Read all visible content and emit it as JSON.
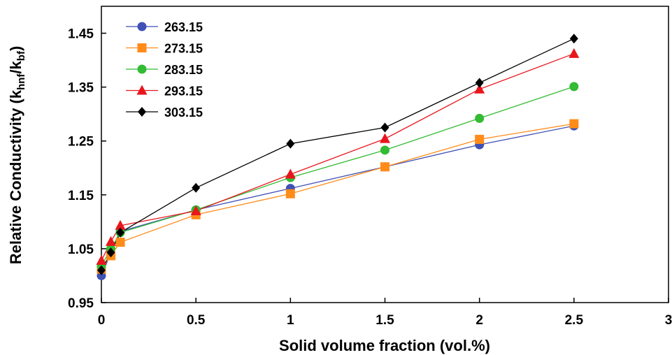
{
  "chart_data": {
    "type": "line",
    "xlabel": "Solid volume fraction (vol.%)",
    "ylabel": {
      "prefix": "Relative Conductivity (k",
      "sub1": "hnf",
      "mid": "/k",
      "sub2": "bf",
      "suffix": ")"
    },
    "xlim": [
      0,
      3
    ],
    "ylim": [
      0.95,
      1.5
    ],
    "xticks": [
      {
        "v": 0,
        "label": "0"
      },
      {
        "v": 0.5,
        "label": "0.5"
      },
      {
        "v": 1,
        "label": "1"
      },
      {
        "v": 1.5,
        "label": "1.5"
      },
      {
        "v": 2,
        "label": "2"
      },
      {
        "v": 2.5,
        "label": "2.5"
      },
      {
        "v": 3,
        "label": "3"
      }
    ],
    "yticks": [
      {
        "v": 0.95,
        "label": "0.95"
      },
      {
        "v": 1.05,
        "label": "1.05"
      },
      {
        "v": 1.15,
        "label": "1.15"
      },
      {
        "v": 1.25,
        "label": "1.25"
      },
      {
        "v": 1.35,
        "label": "1.35"
      },
      {
        "v": 1.45,
        "label": "1.45"
      }
    ],
    "grid": false,
    "legend_position": "top-left",
    "x": [
      0,
      0.05,
      0.1,
      0.5,
      1,
      1.5,
      2,
      2.5
    ],
    "series": [
      {
        "name": "263.15",
        "color": "#3f51b5",
        "marker": "circle",
        "values": [
          1.0,
          1.042,
          1.082,
          1.122,
          1.162,
          1.202,
          1.243,
          1.278
        ]
      },
      {
        "name": "273.15",
        "color": "#ff8c1a",
        "marker": "square",
        "values": [
          1.012,
          1.037,
          1.062,
          1.113,
          1.152,
          1.202,
          1.253,
          1.282
        ]
      },
      {
        "name": "283.15",
        "color": "#33bb33",
        "marker": "circle",
        "values": [
          1.018,
          1.05,
          1.08,
          1.122,
          1.182,
          1.233,
          1.292,
          1.351
        ]
      },
      {
        "name": "293.15",
        "color": "#e8161c",
        "marker": "triangle",
        "values": [
          1.028,
          1.063,
          1.093,
          1.12,
          1.188,
          1.254,
          1.346,
          1.412
        ]
      },
      {
        "name": "303.15",
        "color": "#000000",
        "marker": "diamond",
        "values": [
          1.01,
          1.043,
          1.08,
          1.163,
          1.245,
          1.275,
          1.358,
          1.44
        ]
      }
    ]
  }
}
